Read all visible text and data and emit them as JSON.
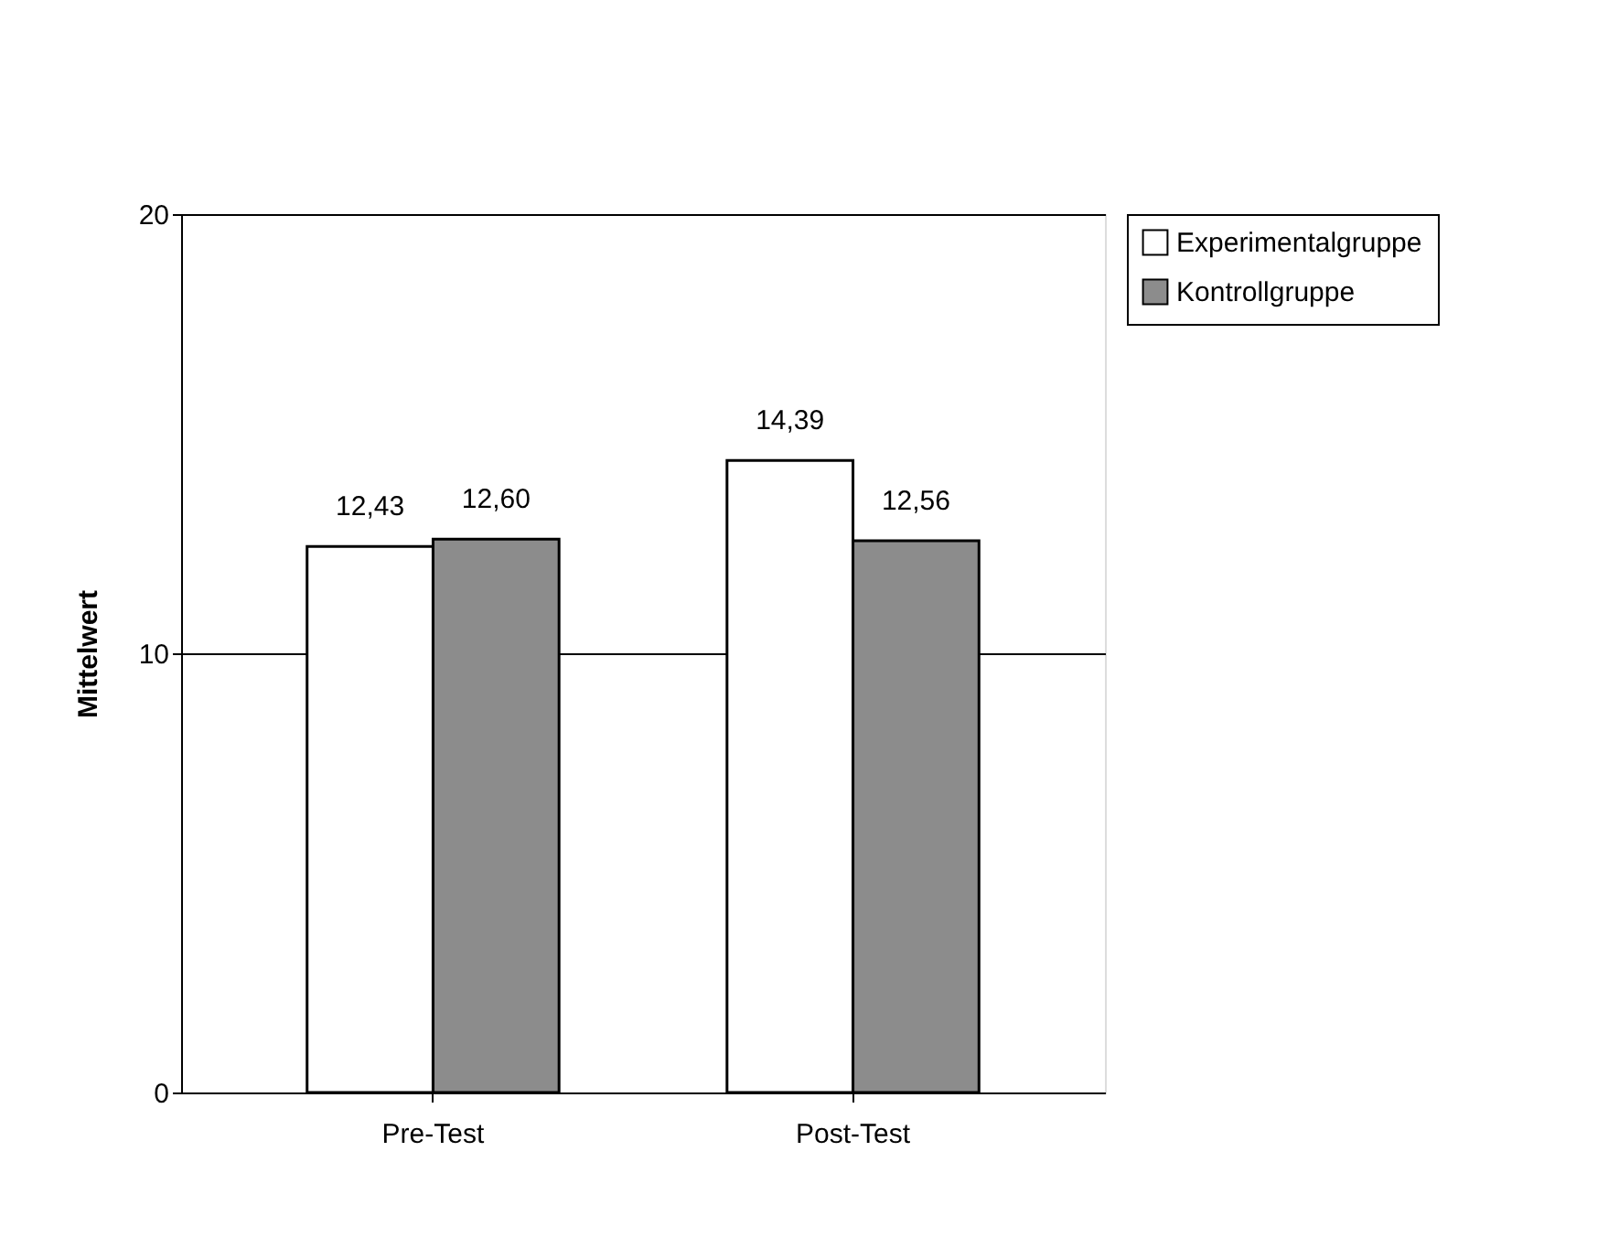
{
  "chart_data": {
    "type": "bar",
    "ylabel": "Mittelwert",
    "categories": [
      "Pre-Test",
      "Post-Test"
    ],
    "series": [
      {
        "name": "Experimentalgruppe",
        "color": "#ffffff",
        "values": [
          12.43,
          14.39
        ],
        "value_labels": [
          "12,43",
          "14,39"
        ]
      },
      {
        "name": "Kontrollgruppe",
        "color": "#8c8c8c",
        "values": [
          12.6,
          12.56
        ],
        "value_labels": [
          "12,60",
          "12,56"
        ]
      }
    ],
    "ylim": [
      0,
      20
    ],
    "yticks": [
      0,
      10,
      20
    ],
    "grid": "y",
    "legend": "right"
  }
}
